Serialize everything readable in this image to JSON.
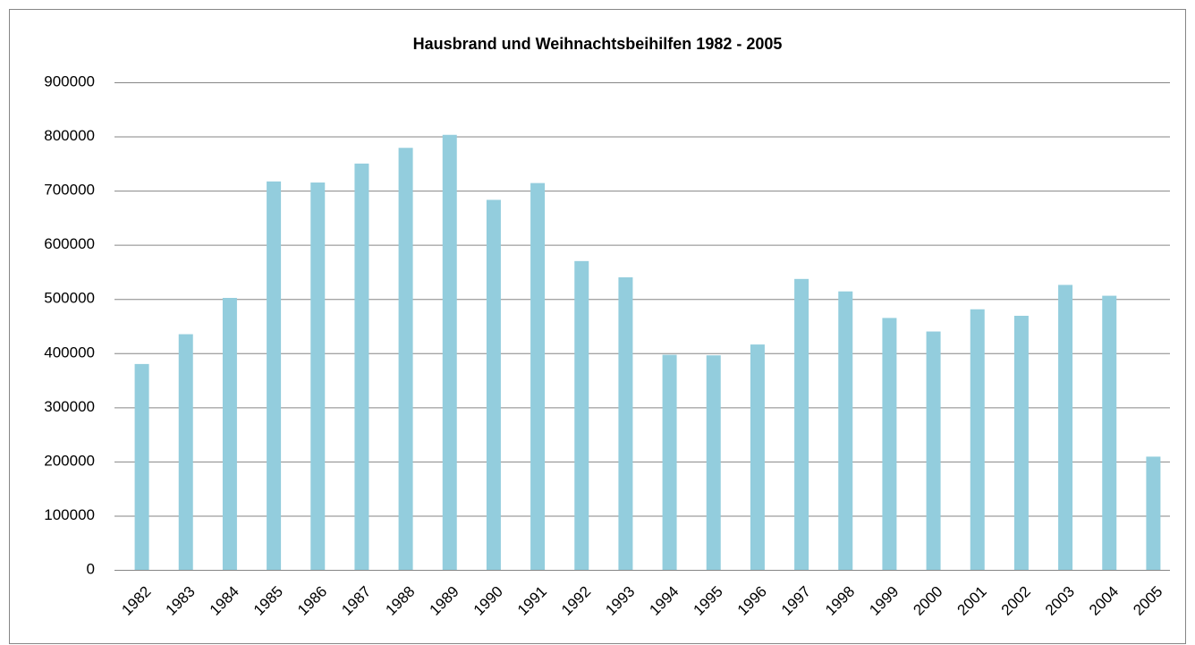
{
  "chart_data": {
    "type": "bar",
    "title": "Hausbrand und Weihnachtsbeihilfen 1982 - 2005",
    "categories": [
      "1982",
      "1983",
      "1984",
      "1985",
      "1986",
      "1987",
      "1988",
      "1989",
      "1990",
      "1991",
      "1992",
      "1993",
      "1994",
      "1995",
      "1996",
      "1997",
      "1998",
      "1999",
      "2000",
      "2001",
      "2002",
      "2003",
      "2004",
      "2005"
    ],
    "values": [
      380000,
      435000,
      502000,
      717000,
      715000,
      750000,
      779000,
      803000,
      683000,
      714000,
      570000,
      540000,
      397000,
      396000,
      416000,
      537000,
      514000,
      465000,
      440000,
      481000,
      469000,
      526000,
      506000,
      209000
    ],
    "color": "#93cddd",
    "ylim": [
      0,
      900000
    ],
    "yticks": [
      0,
      100000,
      200000,
      300000,
      400000,
      500000,
      600000,
      700000,
      800000,
      900000
    ],
    "grid": true
  }
}
